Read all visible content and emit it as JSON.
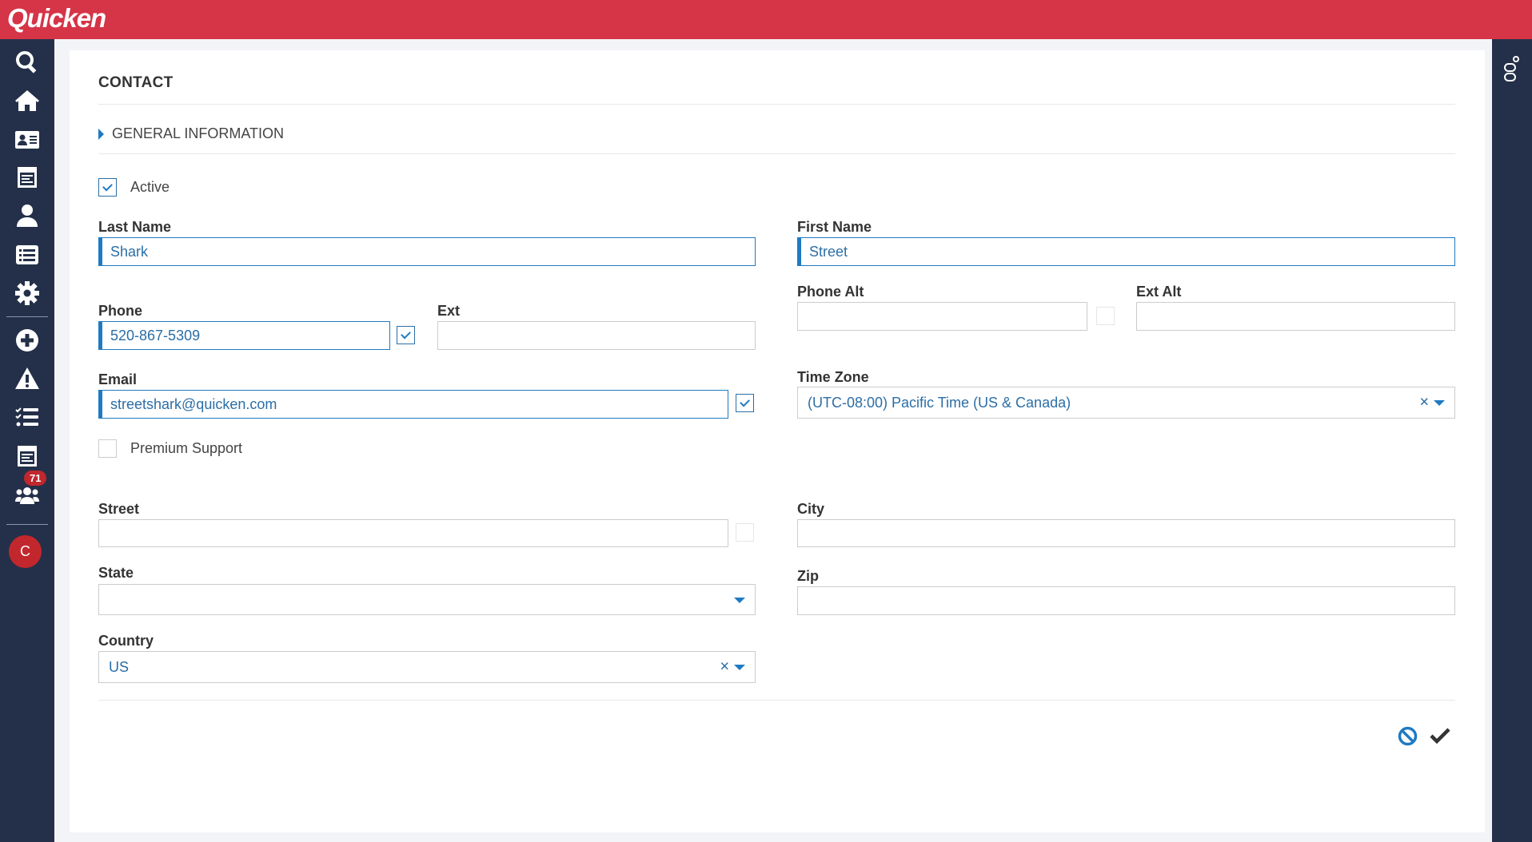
{
  "app": {
    "logo": "Quicken"
  },
  "sidebar": {
    "items": [
      {
        "icon": "search-icon"
      },
      {
        "icon": "home-icon"
      },
      {
        "icon": "contact-card-icon"
      },
      {
        "icon": "calendar-list-icon"
      },
      {
        "icon": "user-icon"
      },
      {
        "icon": "list-icon"
      },
      {
        "icon": "gear-icon"
      },
      {
        "icon": "plus-circle-icon"
      },
      {
        "icon": "warning-icon"
      },
      {
        "icon": "checklist-icon"
      },
      {
        "icon": "tasks-icon",
        "badge": "71"
      },
      {
        "icon": "users-icon"
      }
    ],
    "avatar": "C"
  },
  "form": {
    "title": "CONTACT",
    "section": "GENERAL INFORMATION",
    "active": {
      "label": "Active",
      "checked": true
    },
    "last_name": {
      "label": "Last Name",
      "value": "Shark"
    },
    "first_name": {
      "label": "First Name",
      "value": "Street"
    },
    "phone": {
      "label": "Phone",
      "value": "520-867-5309",
      "checked": true
    },
    "ext": {
      "label": "Ext",
      "value": ""
    },
    "phone_alt": {
      "label": "Phone Alt",
      "value": "",
      "checked": false
    },
    "ext_alt": {
      "label": "Ext Alt",
      "value": ""
    },
    "email": {
      "label": "Email",
      "value": "streetshark@quicken.com",
      "checked": true
    },
    "time_zone": {
      "label": "Time Zone",
      "value": "(UTC-08:00) Pacific Time (US & Canada)"
    },
    "premium_support": {
      "label": "Premium Support",
      "checked": false
    },
    "street": {
      "label": "Street",
      "value": "",
      "checked": false
    },
    "city": {
      "label": "City",
      "value": ""
    },
    "state": {
      "label": "State",
      "value": ""
    },
    "zip": {
      "label": "Zip",
      "value": ""
    },
    "country": {
      "label": "Country",
      "value": "US"
    },
    "clear_symbol": "×"
  },
  "colors": {
    "header": "#d63447",
    "sidebar": "#243049",
    "accent": "#1f7ac2"
  }
}
